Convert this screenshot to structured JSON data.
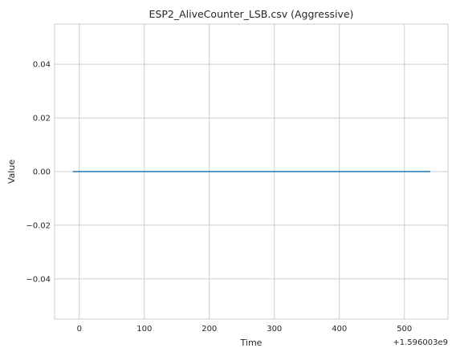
{
  "chart_data": {
    "type": "line",
    "title": "ESP2_AliveCounter_LSB.csv (Aggressive)",
    "xlabel": "Time",
    "ylabel": "Value",
    "x_offset_label": "+1.596003e9",
    "xlim": [
      -38,
      567
    ],
    "ylim": [
      -0.055,
      0.055
    ],
    "x_ticks": [
      0,
      100,
      200,
      300,
      400,
      500
    ],
    "y_ticks": [
      -0.04,
      -0.02,
      0.0,
      0.02,
      0.04
    ],
    "x_tick_labels": [
      "0",
      "100",
      "200",
      "300",
      "400",
      "500"
    ],
    "y_tick_labels": [
      "−0.04",
      "−0.02",
      "0.00",
      "0.02",
      "0.04"
    ],
    "grid": true,
    "series": [
      {
        "color": "#1f77b4",
        "x": [
          -10,
          540
        ],
        "y": [
          0,
          0
        ]
      }
    ]
  }
}
